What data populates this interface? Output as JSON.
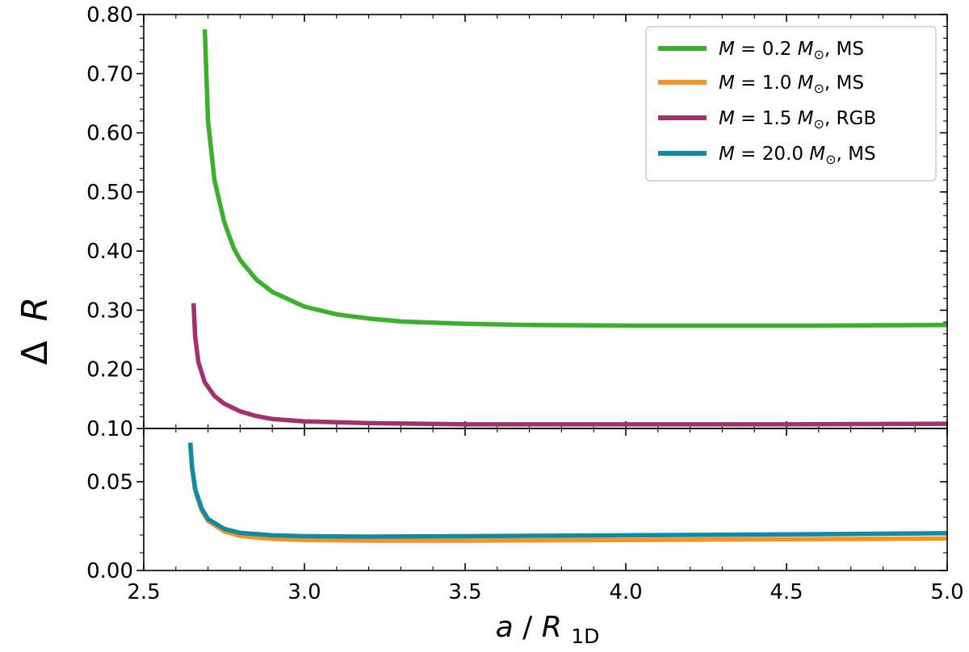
{
  "chart_data": {
    "type": "line",
    "xlabel": {
      "var": "a",
      "slash": "/",
      "base": "R",
      "sub": "1D"
    },
    "ylabel": {
      "delta": "Δ",
      "var": "R"
    },
    "xlim": [
      2.5,
      5.0
    ],
    "x_ticks": [
      "2.5",
      "3.0",
      "3.5",
      "4.0",
      "4.5",
      "5.0"
    ],
    "panels": [
      {
        "ylim": [
          0.1,
          0.8
        ],
        "y_ticks": [
          "0.10",
          "0.20",
          "0.30",
          "0.40",
          "0.50",
          "0.60",
          "0.70",
          "0.80"
        ]
      },
      {
        "ylim": [
          0.0,
          0.08
        ],
        "y_ticks": [
          "0.00",
          "0.05"
        ]
      }
    ],
    "legend_position": "top-right",
    "series": [
      {
        "name": "M = 0.2 M⊙, MS",
        "legend": {
          "m": "M",
          "eq": " = 0.2 ",
          "msun": "M",
          "sun": "⊙",
          "tail": ", MS"
        },
        "color": "#3cb02d",
        "panel": 0,
        "x": [
          2.69,
          2.7,
          2.72,
          2.75,
          2.78,
          2.8,
          2.85,
          2.9,
          3.0,
          3.1,
          3.2,
          3.3,
          3.5,
          3.7,
          4.0,
          4.3,
          4.6,
          5.0
        ],
        "y": [
          0.775,
          0.62,
          0.52,
          0.45,
          0.405,
          0.385,
          0.352,
          0.331,
          0.306,
          0.293,
          0.286,
          0.281,
          0.277,
          0.275,
          0.274,
          0.274,
          0.274,
          0.275
        ]
      },
      {
        "name": "M = 1.0 M⊙, MS",
        "legend": {
          "m": "M",
          "eq": " = 1.0 ",
          "msun": "M",
          "sun": "⊙",
          "tail": ", MS"
        },
        "color": "#f7931e",
        "panel": 1,
        "x": [
          2.645,
          2.65,
          2.66,
          2.68,
          2.7,
          2.75,
          2.8,
          2.9,
          3.0,
          3.2,
          3.5,
          4.0,
          4.5,
          5.0
        ],
        "y": [
          0.071,
          0.058,
          0.045,
          0.034,
          0.028,
          0.022,
          0.0195,
          0.0178,
          0.0172,
          0.0168,
          0.0168,
          0.0172,
          0.0176,
          0.018
        ]
      },
      {
        "name": "M = 1.5 M⊙, RGB",
        "legend": {
          "m": "M",
          "eq": " = 1.5 ",
          "msun": "M",
          "sun": "⊙",
          "tail": ", RGB"
        },
        "color": "#a5306f",
        "panel": 0,
        "x": [
          2.655,
          2.66,
          2.67,
          2.69,
          2.72,
          2.75,
          2.8,
          2.85,
          2.9,
          3.0,
          3.2,
          3.5,
          4.0,
          4.5,
          5.0
        ],
        "y": [
          0.312,
          0.255,
          0.212,
          0.178,
          0.155,
          0.142,
          0.129,
          0.121,
          0.116,
          0.112,
          0.109,
          0.107,
          0.107,
          0.107,
          0.108
        ]
      },
      {
        "name": "M = 20.0 M⊙, MS",
        "legend": {
          "m": "M",
          "eq": " = 20.0 ",
          "msun": "M",
          "sun": "⊙",
          "tail": ", MS"
        },
        "color": "#0f8ba8",
        "panel": 1,
        "x": [
          2.645,
          2.65,
          2.66,
          2.68,
          2.7,
          2.75,
          2.8,
          2.9,
          3.0,
          3.2,
          3.5,
          4.0,
          4.5,
          5.0
        ],
        "y": [
          0.072,
          0.059,
          0.046,
          0.035,
          0.029,
          0.0235,
          0.0212,
          0.0198,
          0.0193,
          0.0191,
          0.0193,
          0.0198,
          0.0203,
          0.021
        ]
      }
    ]
  }
}
